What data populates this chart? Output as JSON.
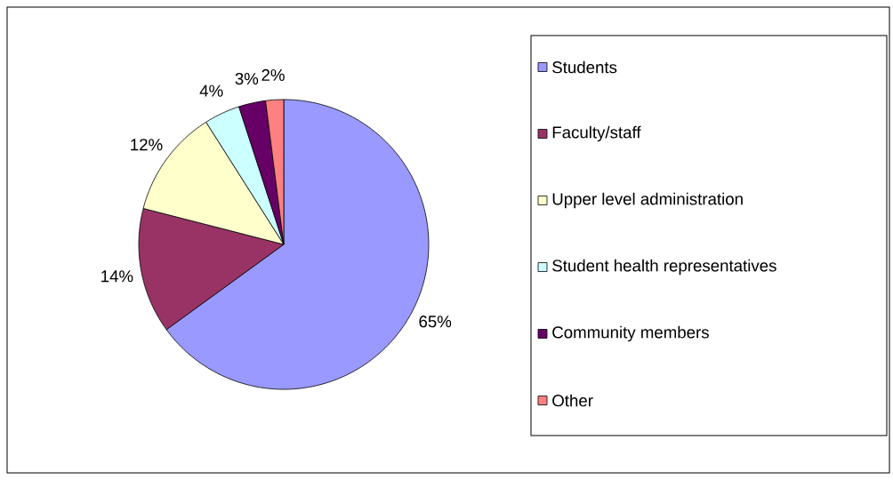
{
  "chart_data": {
    "type": "pie",
    "categories": [
      "Students",
      "Faculty/staff",
      "Upper level administration",
      "Student health representatives",
      "Community members",
      "Other"
    ],
    "values": [
      65,
      14,
      12,
      4,
      3,
      2
    ],
    "colors": [
      "#9999ff",
      "#993366",
      "#ffffcc",
      "#ccffff",
      "#660066",
      "#ff8080"
    ],
    "value_labels": [
      "65%",
      "14%",
      "12%",
      "4%",
      "3%",
      "2%"
    ],
    "legend": "right"
  }
}
